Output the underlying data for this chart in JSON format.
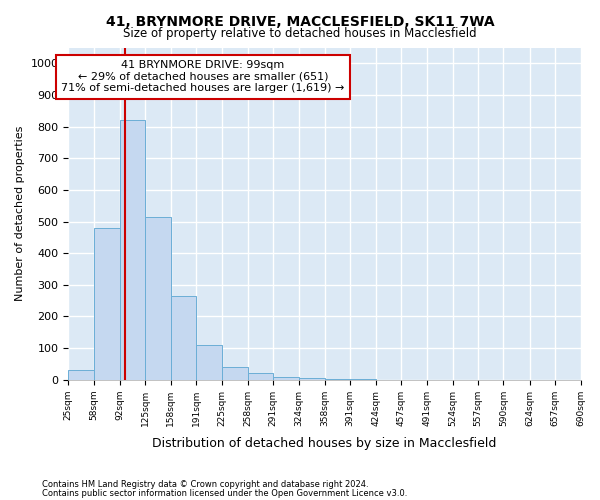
{
  "title1": "41, BRYNMORE DRIVE, MACCLESFIELD, SK11 7WA",
  "title2": "Size of property relative to detached houses in Macclesfield",
  "xlabel": "Distribution of detached houses by size in Macclesfield",
  "ylabel": "Number of detached properties",
  "footnote1": "Contains HM Land Registry data © Crown copyright and database right 2024.",
  "footnote2": "Contains public sector information licensed under the Open Government Licence v3.0.",
  "annotation_line1": "41 BRYNMORE DRIVE: 99sqm",
  "annotation_line2": "← 29% of detached houses are smaller (651)",
  "annotation_line3": "71% of semi-detached houses are larger (1,619) →",
  "bar_left_edges": [
    25,
    58,
    92,
    125,
    158,
    191,
    225,
    258,
    291,
    324,
    358,
    391,
    424,
    457,
    491,
    524,
    557,
    590,
    624,
    657
  ],
  "bar_right_edges": [
    58,
    92,
    125,
    158,
    191,
    225,
    258,
    291,
    324,
    358,
    391,
    424,
    457,
    491,
    524,
    557,
    590,
    624,
    657,
    690
  ],
  "bar_heights": [
    30,
    480,
    820,
    515,
    265,
    110,
    40,
    20,
    10,
    5,
    3,
    2,
    0,
    0,
    0,
    0,
    0,
    0,
    0,
    0
  ],
  "bar_color": "#c5d8f0",
  "bar_edge_color": "#6baed6",
  "vline_color": "#cc0000",
  "vline_x": 99,
  "annotation_box_edgecolor": "#cc0000",
  "plot_bg_color": "#dce9f5",
  "fig_bg_color": "#ffffff",
  "ylim": [
    0,
    1050
  ],
  "yticks": [
    0,
    100,
    200,
    300,
    400,
    500,
    600,
    700,
    800,
    900,
    1000
  ],
  "grid_color": "#ffffff",
  "xlim_left": 25,
  "xlim_right": 690,
  "tick_positions": [
    25,
    58,
    92,
    125,
    158,
    191,
    225,
    258,
    291,
    324,
    358,
    391,
    424,
    457,
    491,
    524,
    557,
    590,
    624,
    657,
    690
  ],
  "tick_labels": [
    "25sqm",
    "58sqm",
    "92sqm",
    "125sqm",
    "158sqm",
    "191sqm",
    "225sqm",
    "258sqm",
    "291sqm",
    "324sqm",
    "358sqm",
    "391sqm",
    "424sqm",
    "457sqm",
    "491sqm",
    "524sqm",
    "557sqm",
    "590sqm",
    "624sqm",
    "657sqm",
    "690sqm"
  ]
}
